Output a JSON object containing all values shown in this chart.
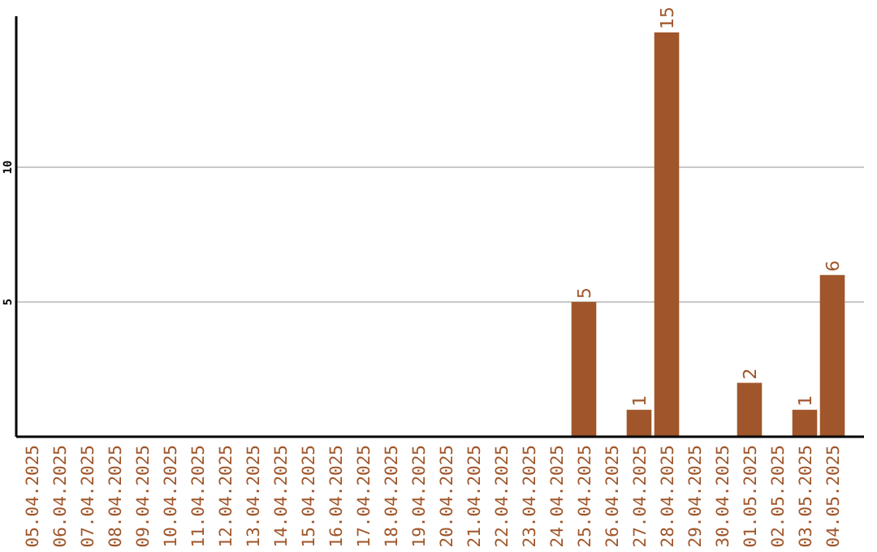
{
  "chart_data": {
    "type": "bar",
    "categories": [
      "05.04.2025",
      "06.04.2025",
      "07.04.2025",
      "08.04.2025",
      "09.04.2025",
      "10.04.2025",
      "11.04.2025",
      "12.04.2025",
      "13.04.2025",
      "14.04.2025",
      "15.04.2025",
      "16.04.2025",
      "17.04.2025",
      "18.04.2025",
      "19.04.2025",
      "20.04.2025",
      "21.04.2025",
      "22.04.2025",
      "23.04.2025",
      "24.04.2025",
      "25.04.2025",
      "26.04.2025",
      "27.04.2025",
      "28.04.2025",
      "29.04.2025",
      "30.04.2025",
      "01.05.2025",
      "02.05.2025",
      "03.05.2025",
      "04.05.2025"
    ],
    "values": [
      0,
      0,
      0,
      0,
      0,
      0,
      0,
      0,
      0,
      0,
      0,
      0,
      0,
      0,
      0,
      0,
      0,
      0,
      0,
      0,
      5,
      0,
      1,
      15,
      0,
      0,
      2,
      0,
      1,
      6
    ],
    "value_labels": [
      null,
      null,
      null,
      null,
      null,
      null,
      null,
      null,
      null,
      null,
      null,
      null,
      null,
      null,
      null,
      null,
      null,
      null,
      null,
      null,
      "5",
      null,
      "1",
      "15",
      null,
      null,
      "2",
      null,
      "1",
      "6"
    ],
    "color": "#a0562a",
    "ylim": [
      0,
      15.6
    ],
    "yticks": [
      5,
      10
    ],
    "grid": "y"
  }
}
